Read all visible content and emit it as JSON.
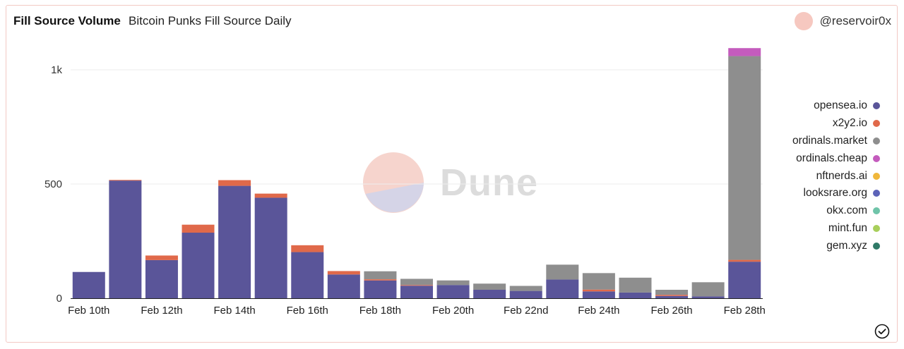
{
  "header": {
    "title": "Fill Source Volume",
    "subtitle": "Bitcoin Punks Fill Source Daily",
    "brand": "@reservoir0x"
  },
  "watermark": {
    "text": "Dune"
  },
  "icons": {
    "check": "check-circle-icon",
    "logo": "dune-logo-icon",
    "avatar": "avatar-icon"
  },
  "chart_data": {
    "type": "bar",
    "stacked": true,
    "title": "Fill Source Volume",
    "subtitle": "Bitcoin Punks Fill Source Daily",
    "xlabel": "",
    "ylabel": "",
    "ylim": [
      0,
      1100
    ],
    "y_ticks": [
      0,
      500,
      1000
    ],
    "y_tick_labels": [
      "0",
      "500",
      "1k"
    ],
    "grid": true,
    "legend_position": "right",
    "categories": [
      "Feb 10th",
      "Feb 11th",
      "Feb 12th",
      "Feb 13th",
      "Feb 14th",
      "Feb 15th",
      "Feb 16th",
      "Feb 17th",
      "Feb 18th",
      "Feb 19th",
      "Feb 20th",
      "Feb 21st",
      "Feb 22nd",
      "Feb 23rd",
      "Feb 24th",
      "Feb 25th",
      "Feb 26th",
      "Feb 27th",
      "Feb 28th"
    ],
    "x_tick_labels": [
      "Feb 10th",
      "Feb 12th",
      "Feb 14th",
      "Feb 16th",
      "Feb 18th",
      "Feb 20th",
      "Feb 22nd",
      "Feb 24th",
      "Feb 26th",
      "Feb 28th"
    ],
    "series": [
      {
        "name": "opensea.io",
        "color": "#5a5599",
        "values": [
          115,
          515,
          167,
          287,
          492,
          440,
          202,
          104,
          78,
          55,
          58,
          37,
          32,
          82,
          30,
          25,
          10,
          8,
          160
        ]
      },
      {
        "name": "x2y2.io",
        "color": "#e0694a",
        "values": [
          0,
          3,
          20,
          35,
          25,
          18,
          30,
          15,
          5,
          3,
          0,
          0,
          0,
          0,
          8,
          0,
          5,
          0,
          8
        ]
      },
      {
        "name": "ordinals.market",
        "color": "#8e8e8e",
        "values": [
          0,
          0,
          0,
          0,
          0,
          0,
          0,
          0,
          35,
          27,
          20,
          27,
          22,
          65,
          72,
          65,
          22,
          62,
          892
        ]
      },
      {
        "name": "ordinals.cheap",
        "color": "#c45bbd",
        "values": [
          0,
          0,
          0,
          0,
          0,
          0,
          0,
          0,
          0,
          0,
          0,
          0,
          0,
          0,
          0,
          0,
          0,
          0,
          35
        ]
      },
      {
        "name": "nftnerds.ai",
        "color": "#f0b73b",
        "values": [
          0,
          0,
          0,
          0,
          0,
          0,
          0,
          0,
          0,
          0,
          0,
          0,
          0,
          0,
          0,
          0,
          0,
          0,
          0
        ]
      },
      {
        "name": "looksrare.org",
        "color": "#5c63b8",
        "values": [
          0,
          0,
          0,
          0,
          0,
          0,
          0,
          0,
          0,
          0,
          0,
          0,
          0,
          0,
          0,
          0,
          0,
          0,
          0
        ]
      },
      {
        "name": "okx.com",
        "color": "#6fc4a9",
        "values": [
          0,
          0,
          0,
          0,
          0,
          0,
          0,
          0,
          0,
          0,
          0,
          0,
          0,
          0,
          0,
          0,
          0,
          0,
          0
        ]
      },
      {
        "name": "mint.fun",
        "color": "#a8cf5b",
        "values": [
          0,
          0,
          0,
          0,
          0,
          0,
          0,
          0,
          0,
          0,
          0,
          0,
          0,
          0,
          0,
          0,
          0,
          0,
          0
        ]
      },
      {
        "name": "gem.xyz",
        "color": "#2f7a67",
        "values": [
          0,
          0,
          0,
          0,
          0,
          0,
          0,
          0,
          0,
          0,
          0,
          0,
          0,
          0,
          0,
          0,
          0,
          0,
          0
        ]
      }
    ]
  }
}
